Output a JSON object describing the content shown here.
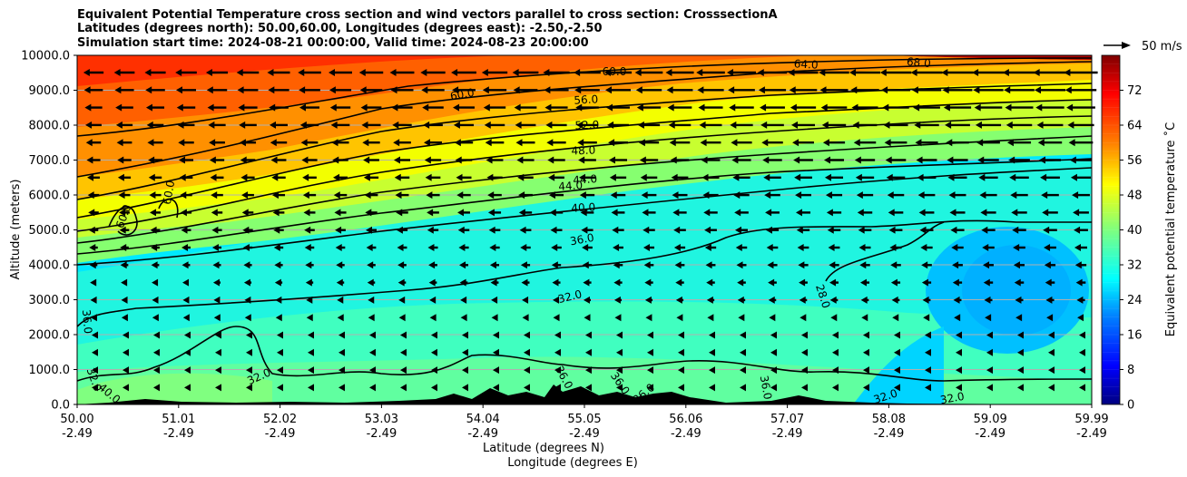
{
  "header": {
    "title_line1": "Equivalent Potential Temperature cross section and wind vectors parallel to cross section: CrosssectionA",
    "title_line2": "Latitudes (degrees north): 50.00,60.00, Longitudes (degrees east): -2.50,-2.50",
    "title_line3": "Simulation start time: 2024-08-21 00:00:00, Valid time: 2024-08-23 20:00:00"
  },
  "chart_data": {
    "type": "heatmap",
    "ylabel": "Altitude (meters)",
    "xlabel_line1": "Latitude (degrees N)",
    "xlabel_line2": "Longitude (degrees E)",
    "ylim": [
      0,
      10000
    ],
    "y_ticks": [
      "0.0",
      "1000.0",
      "2000.0",
      "3000.0",
      "4000.0",
      "5000.0",
      "6000.0",
      "7000.0",
      "8000.0",
      "9000.0",
      "10000.0"
    ],
    "x_ticks_lat": [
      "50.00",
      "51.01",
      "52.02",
      "53.03",
      "54.04",
      "55.05",
      "56.06",
      "57.07",
      "58.08",
      "59.09",
      "59.99"
    ],
    "x_ticks_lon": [
      "-2.49",
      "-2.49",
      "-2.49",
      "-2.49",
      "-2.49",
      "-2.49",
      "-2.49",
      "-2.49",
      "-2.49",
      "-2.49",
      "-2.49"
    ],
    "grid": "horizontal",
    "colorbar": {
      "label": "Equivalent potential temperature ˚C",
      "range": [
        0,
        80
      ],
      "ticks": [
        "0",
        "8",
        "16",
        "24",
        "32",
        "40",
        "48",
        "56",
        "64",
        "72"
      ],
      "colormap": "jet"
    },
    "wind_key": {
      "label": "50 m/s",
      "value": 50
    },
    "contour_labels": [
      "68.0",
      "64.0",
      "60.0",
      "60.0",
      "56.0",
      "52.0",
      "48.0",
      "44.0",
      "44.0",
      "40.0",
      "36.0",
      "32.0",
      "28.0",
      "32.0",
      "32.0",
      "32.0",
      "36.0",
      "36.0",
      "36.0",
      "36.0",
      "36.0",
      "60.0",
      "60.0",
      "32.0",
      "40.0"
    ],
    "wind_field": "horizontal vectors pointing south (toward 50 N); strongest (~40-50 m/s) near 8000-10000 m on the north side, weak (<5 m/s) below 2000 m",
    "terrain": "black filled orography up to about 400 m between 54.5 and 56.1 N",
    "colors": {
      "jet_stops": [
        "#00007f",
        "#0000ff",
        "#007fff",
        "#00ffff",
        "#7fff7f",
        "#ffff00",
        "#ff7f00",
        "#ff0000",
        "#7f0000"
      ],
      "contour": "#000000",
      "terrain": "#000000"
    }
  }
}
